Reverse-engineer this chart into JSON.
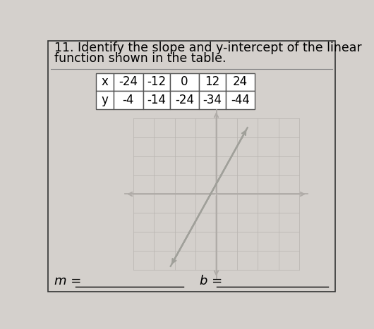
{
  "title_line1": "11. Identify the slope and y-intercept of the linear",
  "title_line2": "function shown in the table.",
  "table_x_label": "x",
  "table_y_label": "y",
  "x_values": [
    "-24",
    "-12",
    "0",
    "12",
    "24"
  ],
  "y_values": [
    "-4",
    "-14",
    "-24",
    "-34",
    "-44"
  ],
  "m_label": "m =",
  "b_label": "b =",
  "bg_color": "#d4d0cc",
  "paper_color": "#d4d0cc",
  "white_color": "#ffffff",
  "title_fontsize": 12.5,
  "table_fontsize": 12,
  "label_fontsize": 13,
  "grid_color": "#b8b4b0",
  "axis_color": "#b0aca8",
  "line_color": "#a0a09a",
  "border_color": "#333333",
  "table_border_color": "#555555"
}
